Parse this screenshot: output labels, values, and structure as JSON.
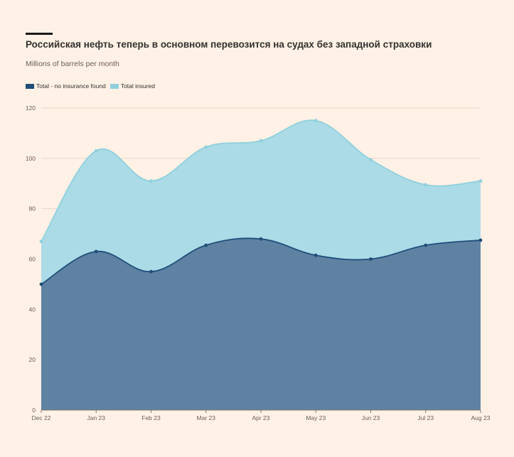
{
  "title": "Российская нефть теперь в основном перевозится на судах без западной страховки",
  "subtitle": "Millions of barrels per month",
  "colors": {
    "background": "#fff1e5",
    "no_insurance_fill": "#5f82a3",
    "no_insurance_line": "#1f4e79",
    "insured_fill": "#abdbe6",
    "insured_line": "#8fd0de",
    "grid": "#e2d8cf"
  },
  "chart_data": {
    "type": "area",
    "stacked": false,
    "x": [
      "Dec 22",
      "Jan 23",
      "Feb 23",
      "Mar 23",
      "Apr 23",
      "May 23",
      "Jun 23",
      "Jul 23",
      "Aug 23"
    ],
    "series": [
      {
        "name": "Total - no insurance found",
        "values": [
          50,
          63,
          55,
          65.5,
          68,
          61.5,
          60,
          65.5,
          67.5
        ]
      },
      {
        "name": "Total insured",
        "values": [
          67,
          103,
          91,
          104.5,
          107,
          115,
          99.5,
          89.5,
          91
        ]
      }
    ],
    "ylim": [
      0,
      120
    ],
    "yticks": [
      0,
      20,
      40,
      60,
      80,
      100,
      120
    ],
    "grid": true,
    "legend": "top-left",
    "xlabel": "",
    "ylabel": ""
  }
}
